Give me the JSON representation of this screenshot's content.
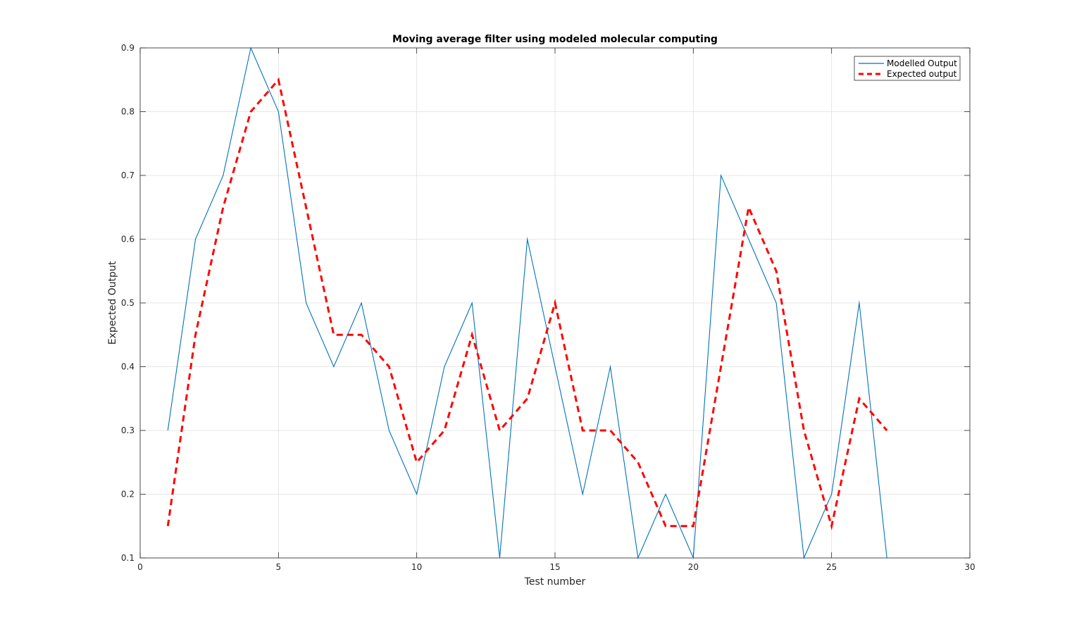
{
  "chart_data": {
    "type": "line",
    "title": "Moving average filter using modeled molecular computing",
    "xlabel": "Test number",
    "ylabel": "Expected Output",
    "xlim": [
      0,
      30
    ],
    "ylim": [
      0.1,
      0.9
    ],
    "xticks": [
      0,
      5,
      10,
      15,
      20,
      25,
      30
    ],
    "yticks": [
      0.1,
      0.2,
      0.3,
      0.4,
      0.5,
      0.6,
      0.7,
      0.8,
      0.9
    ],
    "grid": true,
    "legend_position": "top-right",
    "x": [
      1,
      2,
      3,
      4,
      5,
      6,
      7,
      8,
      9,
      10,
      11,
      12,
      13,
      14,
      15,
      16,
      17,
      18,
      19,
      20,
      21,
      22,
      23,
      24,
      25,
      26,
      27
    ],
    "series": [
      {
        "name": "Modelled Output",
        "color": "#0072BD",
        "style": "solid",
        "values": [
          0.3,
          0.6,
          0.7,
          0.9,
          0.8,
          0.5,
          0.4,
          0.5,
          0.3,
          0.2,
          0.4,
          0.5,
          0.1,
          0.6,
          0.4,
          0.2,
          0.4,
          0.1,
          0.2,
          0.1,
          0.7,
          0.6,
          0.5,
          0.1,
          0.2,
          0.5,
          0.1
        ]
      },
      {
        "name": "Expected output",
        "color": "#FF0000",
        "style": "dashed",
        "values": [
          0.15,
          0.45,
          0.65,
          0.8,
          0.85,
          0.65,
          0.45,
          0.45,
          0.4,
          0.25,
          0.3,
          0.45,
          0.3,
          0.35,
          0.5,
          0.3,
          0.3,
          0.25,
          0.15,
          0.15,
          0.4,
          0.65,
          0.55,
          0.3,
          0.15,
          0.35,
          0.3
        ]
      }
    ]
  }
}
